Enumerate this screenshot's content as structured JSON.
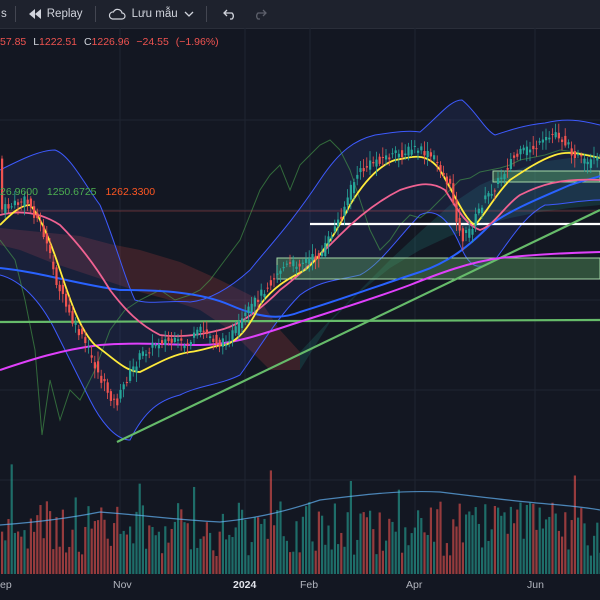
{
  "toolbar": {
    "left_fragment": "s",
    "replay_label": "Replay",
    "templates_label": "Lưu mẫu",
    "icons": [
      "rewind-icon",
      "cloud-icon",
      "chevron-down-icon",
      "undo-icon",
      "redo-icon"
    ]
  },
  "legend": {
    "open_fragment": "57.85",
    "low_label": "L",
    "low_value": "1222.51",
    "close_label": "C",
    "close_value": "1226.96",
    "change": "−24.55",
    "change_pct": "(−1.96%)"
  },
  "indicator_values": [
    {
      "text": "26.9600",
      "color": "#4caf50"
    },
    {
      "text": "1250.6725",
      "color": "#4caf50"
    },
    {
      "text": "1262.3300",
      "color": "#ff5722"
    }
  ],
  "x_axis": {
    "labels": [
      {
        "text": "ep",
        "bold": false
      },
      {
        "text": "Nov",
        "bold": false
      },
      {
        "text": "2024",
        "bold": true
      },
      {
        "text": "Feb",
        "bold": false
      },
      {
        "text": "Apr",
        "bold": false
      },
      {
        "text": "Jun",
        "bold": false
      }
    ]
  },
  "colors": {
    "background": "#131722",
    "up": "#26a69a",
    "down": "#ef5350",
    "white_line": "#ffffff",
    "trend_line": "#66bb6a",
    "ma_yellow": "#ffeb3b",
    "ma_pink": "#f48fb1",
    "ma_magenta": "#e040fb",
    "ma_blue": "#2962ff",
    "band": "#3f51b5"
  },
  "chart_data": {
    "type": "candlestick",
    "x_ticks": [
      "ep",
      "Nov",
      "2024",
      "Feb",
      "Apr",
      "Jun"
    ],
    "last_close": 1226.96,
    "overlays": [
      "bollinger-bands",
      "ichimoku-cloud",
      "moving-averages",
      "trend-lines",
      "support-zones",
      "volume"
    ]
  }
}
